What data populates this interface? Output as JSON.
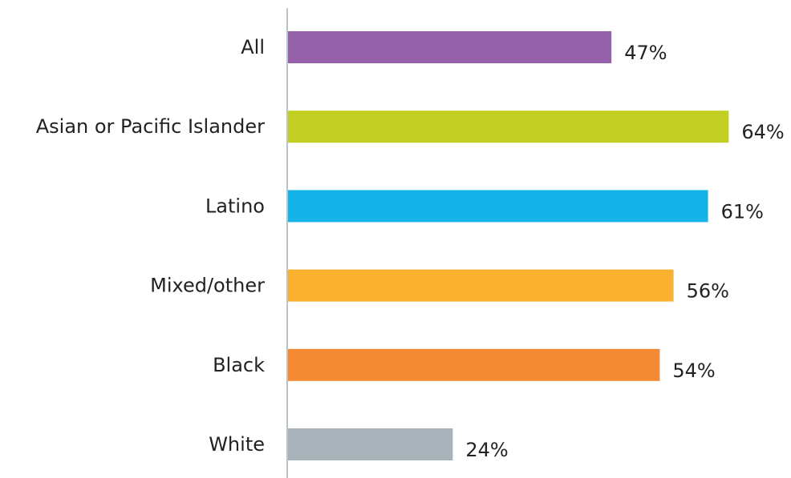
{
  "chart_data": {
    "type": "bar",
    "orientation": "horizontal",
    "categories": [
      "All",
      "Asian or Pacific Islander",
      "Latino",
      "Mixed/other",
      "Black",
      "White"
    ],
    "values": [
      47,
      64,
      61,
      56,
      54,
      24
    ],
    "value_labels": [
      "47%",
      "64%",
      "61%",
      "56%",
      "54%",
      "24%"
    ],
    "colors": [
      "#9561A9",
      "#C4CF23",
      "#15B4E8",
      "#FAB12F",
      "#F58A35",
      "#A8B2B9"
    ],
    "axis_color": "#B8C4C9",
    "unit": "%",
    "xlim": [
      0,
      100
    ],
    "grid": false,
    "legend": "none"
  }
}
